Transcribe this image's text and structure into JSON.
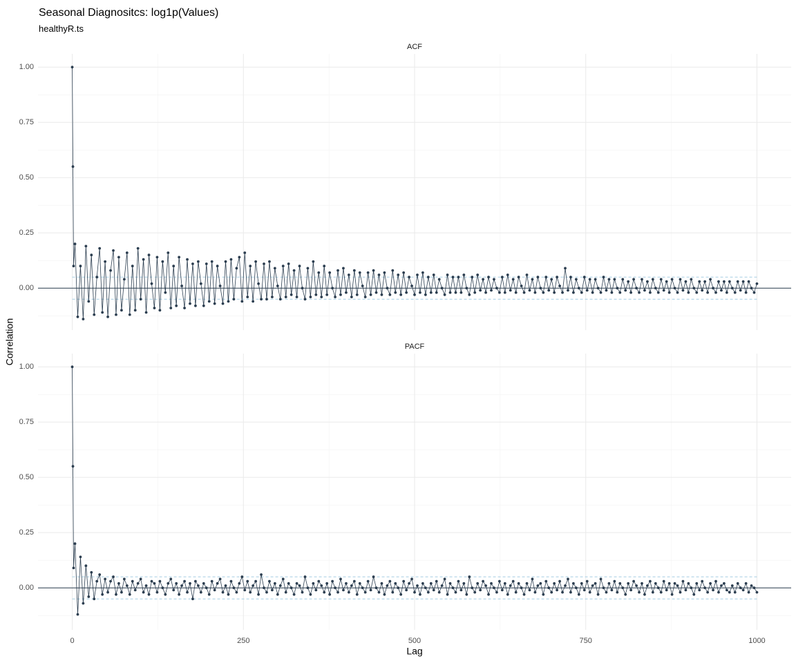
{
  "title": "Seasonal Diagnositcs: log1p(Values)",
  "subtitle": "healthyR.ts",
  "xlabel": "Lag",
  "ylabel": "Correlation",
  "chart_data": [
    {
      "type": "line",
      "panel": "ACF",
      "color": "#2c3e50",
      "ci": [
        -0.05,
        0.05
      ],
      "ci_color": "#a6cee3",
      "xlim": [
        -50,
        1050
      ],
      "ylim": [
        -0.19,
        1.06
      ],
      "xticks": [
        0,
        250,
        500,
        750,
        1000
      ],
      "yticks": [
        {
          "value": 0,
          "label": "0.00"
        },
        {
          "value": 0.25,
          "label": "0.25"
        },
        {
          "value": 0.5,
          "label": "0.50"
        },
        {
          "value": 0.75,
          "label": "0.75"
        },
        {
          "value": 1,
          "label": "1.00"
        }
      ],
      "grid": true,
      "x": [
        0,
        1,
        2,
        4,
        8,
        12,
        16,
        20,
        24,
        28,
        32,
        36,
        40,
        44,
        48,
        52,
        56,
        60,
        64,
        68,
        72,
        76,
        80,
        84,
        88,
        92,
        96,
        100,
        104,
        108,
        112,
        116,
        120,
        124,
        128,
        132,
        136,
        140,
        144,
        148,
        152,
        156,
        160,
        164,
        168,
        172,
        176,
        180,
        184,
        188,
        192,
        196,
        200,
        204,
        208,
        212,
        216,
        220,
        224,
        228,
        232,
        236,
        240,
        244,
        248,
        252,
        256,
        260,
        264,
        268,
        272,
        276,
        280,
        284,
        288,
        292,
        296,
        300,
        304,
        308,
        312,
        316,
        320,
        324,
        328,
        332,
        336,
        340,
        344,
        348,
        352,
        356,
        360,
        364,
        368,
        372,
        376,
        380,
        384,
        388,
        392,
        396,
        400,
        404,
        408,
        412,
        416,
        420,
        424,
        428,
        432,
        436,
        440,
        444,
        448,
        452,
        456,
        460,
        464,
        468,
        472,
        476,
        480,
        484,
        488,
        492,
        496,
        500,
        504,
        508,
        512,
        516,
        520,
        524,
        528,
        532,
        536,
        540,
        544,
        548,
        552,
        556,
        560,
        564,
        568,
        572,
        576,
        580,
        584,
        588,
        592,
        596,
        600,
        604,
        608,
        612,
        616,
        620,
        624,
        628,
        632,
        636,
        640,
        644,
        648,
        652,
        656,
        660,
        664,
        668,
        672,
        676,
        680,
        684,
        688,
        692,
        696,
        700,
        704,
        708,
        712,
        716,
        720,
        724,
        728,
        732,
        736,
        740,
        744,
        748,
        752,
        756,
        760,
        764,
        768,
        772,
        776,
        780,
        784,
        788,
        792,
        796,
        800,
        804,
        808,
        812,
        816,
        820,
        824,
        828,
        832,
        836,
        840,
        844,
        848,
        852,
        856,
        860,
        864,
        868,
        872,
        876,
        880,
        884,
        888,
        892,
        896,
        900,
        904,
        908,
        912,
        916,
        920,
        924,
        928,
        932,
        936,
        940,
        944,
        948,
        952,
        956,
        960,
        964,
        968,
        972,
        976,
        980,
        984,
        988,
        992,
        996,
        1000
      ],
      "values": [
        1.0,
        0.55,
        0.1,
        0.2,
        -0.13,
        0.1,
        -0.14,
        0.19,
        -0.06,
        0.15,
        -0.12,
        0.05,
        0.18,
        -0.11,
        0.12,
        -0.13,
        0.08,
        0.17,
        -0.12,
        0.14,
        -0.1,
        0.04,
        0.16,
        -0.12,
        0.1,
        -0.1,
        0.18,
        -0.05,
        0.13,
        -0.11,
        0.15,
        0.02,
        -0.09,
        0.14,
        -0.1,
        0.12,
        -0.02,
        0.16,
        -0.09,
        0.1,
        -0.08,
        0.14,
        0.01,
        -0.09,
        0.13,
        -0.07,
        0.11,
        -0.08,
        0.12,
        0.02,
        -0.08,
        0.11,
        -0.06,
        0.12,
        -0.07,
        0.1,
        0.01,
        -0.07,
        0.12,
        -0.06,
        0.13,
        -0.05,
        0.09,
        0.14,
        -0.06,
        0.16,
        -0.04,
        0.1,
        -0.06,
        0.12,
        0.02,
        -0.05,
        0.11,
        -0.05,
        0.12,
        -0.04,
        0.09,
        0.01,
        -0.05,
        0.1,
        -0.04,
        0.11,
        -0.03,
        0.08,
        -0.04,
        0.1,
        0.0,
        -0.05,
        0.09,
        -0.04,
        0.12,
        -0.03,
        0.07,
        -0.04,
        0.1,
        -0.03,
        0.07,
        0.0,
        -0.04,
        0.08,
        -0.03,
        0.09,
        -0.02,
        0.06,
        -0.04,
        0.08,
        -0.03,
        0.07,
        0.01,
        -0.04,
        0.07,
        -0.03,
        0.08,
        -0.02,
        0.06,
        -0.03,
        0.07,
        0.0,
        -0.03,
        0.08,
        -0.02,
        0.06,
        -0.03,
        0.07,
        -0.02,
        0.05,
        0.01,
        -0.03,
        0.06,
        -0.02,
        0.07,
        -0.03,
        0.05,
        -0.02,
        0.06,
        -0.02,
        0.04,
        0.0,
        -0.03,
        0.06,
        -0.02,
        0.05,
        -0.02,
        0.05,
        -0.02,
        0.06,
        0.0,
        -0.03,
        0.05,
        -0.02,
        0.06,
        -0.01,
        0.04,
        -0.02,
        0.05,
        -0.01,
        0.04,
        0.0,
        -0.02,
        0.05,
        -0.02,
        0.06,
        -0.01,
        0.04,
        -0.02,
        0.05,
        0.01,
        -0.02,
        0.06,
        -0.01,
        0.04,
        -0.02,
        0.05,
        0.0,
        -0.02,
        0.05,
        -0.01,
        0.04,
        -0.02,
        0.05,
        0.01,
        -0.02,
        0.09,
        -0.01,
        0.05,
        -0.02,
        0.04,
        0.0,
        -0.02,
        0.05,
        -0.01,
        0.04,
        -0.02,
        0.04,
        0.0,
        -0.02,
        0.05,
        -0.01,
        0.04,
        -0.02,
        0.04,
        0.0,
        -0.02,
        0.04,
        -0.01,
        0.03,
        -0.02,
        0.04,
        0.0,
        -0.02,
        0.04,
        -0.01,
        0.03,
        -0.02,
        0.04,
        0.0,
        -0.02,
        0.04,
        -0.01,
        0.03,
        -0.02,
        0.04,
        0.0,
        -0.02,
        0.04,
        -0.01,
        0.03,
        -0.02,
        0.04,
        0.0,
        -0.02,
        0.03,
        -0.01,
        0.03,
        -0.02,
        0.04,
        0.0,
        -0.02,
        0.03,
        -0.01,
        0.03,
        -0.02,
        0.03,
        0.0,
        -0.02,
        0.03,
        -0.01,
        0.03,
        -0.02,
        0.03,
        0.0,
        -0.02,
        0.02
      ]
    },
    {
      "type": "line",
      "panel": "PACF",
      "color": "#2c3e50",
      "ci": [
        -0.05,
        0.05
      ],
      "ci_color": "#a6cee3",
      "xlim": [
        -50,
        1050
      ],
      "ylim": [
        -0.19,
        1.06
      ],
      "xticks": [
        0,
        250,
        500,
        750,
        1000
      ],
      "yticks": [
        {
          "value": 0,
          "label": "0.00"
        },
        {
          "value": 0.25,
          "label": "0.25"
        },
        {
          "value": 0.5,
          "label": "0.50"
        },
        {
          "value": 0.75,
          "label": "0.75"
        },
        {
          "value": 1,
          "label": "1.00"
        }
      ],
      "grid": true,
      "x": [
        0,
        1,
        2,
        4,
        8,
        12,
        16,
        20,
        24,
        28,
        32,
        36,
        40,
        44,
        48,
        52,
        56,
        60,
        64,
        68,
        72,
        76,
        80,
        84,
        88,
        92,
        96,
        100,
        104,
        108,
        112,
        116,
        120,
        124,
        128,
        132,
        136,
        140,
        144,
        148,
        152,
        156,
        160,
        164,
        168,
        172,
        176,
        180,
        184,
        188,
        192,
        196,
        200,
        204,
        208,
        212,
        216,
        220,
        224,
        228,
        232,
        236,
        240,
        244,
        248,
        252,
        256,
        260,
        264,
        268,
        272,
        276,
        280,
        284,
        288,
        292,
        296,
        300,
        304,
        308,
        312,
        316,
        320,
        324,
        328,
        332,
        336,
        340,
        344,
        348,
        352,
        356,
        360,
        364,
        368,
        372,
        376,
        380,
        384,
        388,
        392,
        396,
        400,
        404,
        408,
        412,
        416,
        420,
        424,
        428,
        432,
        436,
        440,
        444,
        448,
        452,
        456,
        460,
        464,
        468,
        472,
        476,
        480,
        484,
        488,
        492,
        496,
        500,
        504,
        508,
        512,
        516,
        520,
        524,
        528,
        532,
        536,
        540,
        544,
        548,
        552,
        556,
        560,
        564,
        568,
        572,
        576,
        580,
        584,
        588,
        592,
        596,
        600,
        604,
        608,
        612,
        616,
        620,
        624,
        628,
        632,
        636,
        640,
        644,
        648,
        652,
        656,
        660,
        664,
        668,
        672,
        676,
        680,
        684,
        688,
        692,
        696,
        700,
        704,
        708,
        712,
        716,
        720,
        724,
        728,
        732,
        736,
        740,
        744,
        748,
        752,
        756,
        760,
        764,
        768,
        772,
        776,
        780,
        784,
        788,
        792,
        796,
        800,
        804,
        808,
        812,
        816,
        820,
        824,
        828,
        832,
        836,
        840,
        844,
        848,
        852,
        856,
        860,
        864,
        868,
        872,
        876,
        880,
        884,
        888,
        892,
        896,
        900,
        904,
        908,
        912,
        916,
        920,
        924,
        928,
        932,
        936,
        940,
        944,
        948,
        952,
        956,
        960,
        964,
        968,
        972,
        976,
        980,
        984,
        988,
        992,
        996,
        1000
      ],
      "values": [
        1.0,
        0.55,
        0.09,
        0.2,
        -0.12,
        0.14,
        -0.07,
        0.1,
        -0.04,
        0.07,
        -0.05,
        0.03,
        0.06,
        -0.03,
        0.04,
        -0.02,
        0.03,
        0.05,
        -0.03,
        0.02,
        -0.02,
        0.04,
        0.01,
        -0.03,
        0.03,
        -0.01,
        0.02,
        0.04,
        -0.02,
        0.01,
        -0.03,
        0.03,
        0.02,
        -0.02,
        0.03,
        0.0,
        -0.03,
        0.02,
        0.04,
        -0.01,
        0.02,
        -0.03,
        0.01,
        0.03,
        -0.02,
        0.02,
        -0.05,
        0.03,
        0.01,
        -0.02,
        0.02,
        0.0,
        -0.03,
        0.03,
        -0.01,
        0.02,
        0.04,
        -0.02,
        0.01,
        -0.03,
        0.03,
        0.0,
        -0.02,
        0.02,
        0.05,
        -0.01,
        0.03,
        -0.02,
        0.01,
        0.03,
        -0.03,
        0.06,
        0.0,
        -0.02,
        0.03,
        -0.01,
        0.02,
        -0.03,
        0.01,
        0.04,
        -0.02,
        0.02,
        0.0,
        -0.03,
        0.02,
        0.01,
        -0.02,
        0.05,
        0.0,
        -0.03,
        0.02,
        -0.01,
        0.03,
        0.01,
        -0.02,
        0.02,
        -0.03,
        0.03,
        0.0,
        -0.02,
        0.04,
        -0.01,
        0.02,
        -0.02,
        0.01,
        0.03,
        -0.03,
        0.02,
        0.0,
        -0.02,
        0.03,
        -0.01,
        0.05,
        0.0,
        -0.02,
        0.02,
        -0.03,
        0.01,
        0.03,
        -0.02,
        0.02,
        0.0,
        -0.03,
        0.03,
        -0.01,
        0.02,
        0.04,
        -0.02,
        0.01,
        -0.03,
        0.02,
        0.0,
        -0.02,
        0.02,
        -0.01,
        0.03,
        -0.02,
        0.01,
        0.04,
        -0.03,
        0.02,
        0.0,
        -0.02,
        0.03,
        -0.01,
        0.02,
        -0.03,
        0.05,
        0.0,
        -0.02,
        0.02,
        -0.01,
        0.03,
        0.01,
        -0.03,
        0.02,
        0.0,
        -0.02,
        0.03,
        -0.01,
        0.02,
        -0.03,
        0.01,
        0.03,
        -0.02,
        0.02,
        0.0,
        -0.03,
        0.02,
        -0.01,
        0.04,
        -0.02,
        0.01,
        0.02,
        -0.03,
        0.03,
        0.0,
        -0.02,
        0.02,
        -0.01,
        0.03,
        -0.02,
        0.01,
        0.04,
        -0.02,
        0.02,
        0.0,
        -0.03,
        0.02,
        -0.01,
        0.03,
        -0.02,
        0.01,
        0.02,
        -0.03,
        0.04,
        0.0,
        -0.02,
        0.02,
        -0.01,
        0.03,
        -0.02,
        0.02,
        0.0,
        -0.03,
        0.02,
        -0.01,
        0.03,
        0.01,
        -0.02,
        0.02,
        -0.03,
        0.01,
        0.03,
        -0.02,
        0.02,
        0.0,
        -0.02,
        0.03,
        -0.01,
        0.02,
        -0.03,
        0.02,
        0.01,
        -0.02,
        0.03,
        -0.01,
        0.02,
        0.0,
        -0.03,
        0.02,
        -0.01,
        0.03,
        0.0,
        -0.02,
        0.02,
        -0.01,
        0.03,
        -0.02,
        0.01,
        0.02,
        -0.01,
        -0.02,
        0.01,
        -0.02,
        0.02,
        0.0,
        -0.01,
        0.02,
        -0.02,
        0.01,
        0.0,
        -0.02
      ]
    }
  ]
}
